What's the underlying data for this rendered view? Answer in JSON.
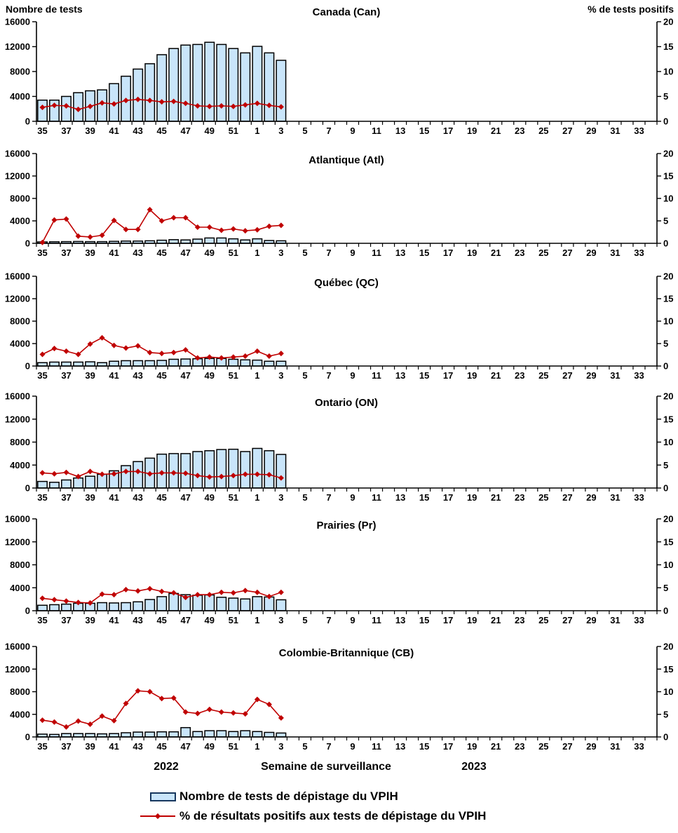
{
  "figure": {
    "left_axis_title": "Nombre de tests",
    "right_axis_title": "% de tests positifs",
    "x_axis_title": "Semaine de surveillance",
    "year_left": "2022",
    "year_right": "2023",
    "legend_bar_label": "Nombre de tests de dépistage du VPIH",
    "legend_line_label": "% de résultats positifs aux tests de dépistage du VPIH",
    "colors": {
      "bar_fill": "#C9E5FA",
      "bar_border": "#000000",
      "line": "#C00000",
      "legend_swatch_border": "#17375E",
      "axis": "#000000"
    }
  },
  "chart_data": {
    "type": "bar",
    "subtype": "combo bar + line, small multiples (6 stacked panels)",
    "x_categories": [
      "35",
      "36",
      "37",
      "38",
      "39",
      "40",
      "41",
      "42",
      "43",
      "44",
      "45",
      "46",
      "47",
      "48",
      "49",
      "50",
      "51",
      "52",
      "1",
      "2",
      "3",
      "4",
      "5",
      "6",
      "7",
      "8",
      "9",
      "10",
      "11",
      "12",
      "13",
      "14",
      "15",
      "16",
      "17",
      "18",
      "19",
      "20",
      "21",
      "22",
      "23",
      "24",
      "25",
      "26",
      "27",
      "28",
      "29",
      "30",
      "31",
      "32",
      "33",
      "34"
    ],
    "x_tick_labels": [
      "35",
      "37",
      "39",
      "41",
      "43",
      "45",
      "47",
      "49",
      "51",
      "1",
      "3",
      "5",
      "7",
      "9",
      "11",
      "13",
      "15",
      "17",
      "19",
      "21",
      "23",
      "25",
      "27",
      "29",
      "31",
      "33"
    ],
    "xlabel": "Semaine de surveillance",
    "x_year_spans": {
      "2022": "weeks 35-52",
      "2023": "weeks 1-34"
    },
    "left_axis": {
      "title": "Nombre de tests",
      "range": [
        0,
        16000
      ],
      "ticks": [
        0,
        4000,
        8000,
        12000,
        16000
      ]
    },
    "right_axis": {
      "title": "% de tests positifs",
      "range": [
        0,
        20
      ],
      "ticks": [
        0,
        5,
        10,
        15,
        20
      ]
    },
    "grid": false,
    "legend_position": "bottom-left",
    "series_meta": [
      {
        "name": "Nombre de tests de dépistage du VPIH",
        "type": "bar",
        "axis": "left"
      },
      {
        "name": "% de résultats positifs aux tests de dépistage du VPIH",
        "type": "line",
        "marker": "diamond",
        "axis": "right"
      }
    ],
    "data_weeks_note": "data plotted for weeks 35 (2022) through 3 (2023) only; remaining weeks empty",
    "panels": [
      {
        "title": "Canada (Can)",
        "tests": [
          3400,
          3400,
          4000,
          4600,
          4900,
          5050,
          6050,
          7250,
          8400,
          9250,
          10700,
          11700,
          12250,
          12350,
          12700,
          12350,
          11700,
          11000,
          12050,
          11000,
          9800
        ],
        "pct_positive": [
          2.8,
          3.2,
          3.1,
          2.4,
          3.0,
          3.7,
          3.5,
          4.2,
          4.4,
          4.2,
          3.9,
          4.0,
          3.6,
          3.1,
          3.0,
          3.1,
          3.0,
          3.3,
          3.6,
          3.2,
          2.9
        ]
      },
      {
        "title": "Atlantique (Atl)",
        "tests": [
          250,
          280,
          300,
          320,
          300,
          300,
          350,
          400,
          400,
          450,
          550,
          650,
          600,
          750,
          950,
          950,
          800,
          600,
          800,
          500,
          450
        ],
        "pct_positive": [
          0.2,
          5.2,
          5.4,
          1.6,
          1.4,
          1.8,
          5.1,
          3.1,
          3.1,
          7.5,
          5.0,
          5.7,
          5.7,
          3.6,
          3.6,
          2.9,
          3.2,
          2.8,
          3.0,
          3.8,
          4.0
        ]
      },
      {
        "title": "Québec (QC)",
        "tests": [
          600,
          700,
          700,
          700,
          750,
          600,
          850,
          950,
          950,
          950,
          1000,
          1200,
          1250,
          1300,
          1350,
          1350,
          1200,
          1100,
          1050,
          850,
          850
        ],
        "pct_positive": [
          2.6,
          3.9,
          3.3,
          2.6,
          4.9,
          6.3,
          4.6,
          4.0,
          4.5,
          3.0,
          2.8,
          3.0,
          3.6,
          1.8,
          2.0,
          1.8,
          2.0,
          2.2,
          3.3,
          2.2,
          2.8
        ]
      },
      {
        "title": "Ontario (ON)",
        "tests": [
          1150,
          1000,
          1400,
          1750,
          2050,
          2400,
          3000,
          3900,
          4600,
          5200,
          5900,
          6000,
          6000,
          6350,
          6500,
          6700,
          6750,
          6350,
          6900,
          6500,
          5850
        ],
        "pct_positive": [
          3.3,
          3.1,
          3.4,
          2.5,
          3.6,
          3.0,
          3.1,
          3.6,
          3.6,
          3.1,
          3.3,
          3.3,
          3.2,
          2.7,
          2.4,
          2.5,
          2.7,
          3.0,
          3.0,
          2.9,
          2.2
        ]
      },
      {
        "title": "Prairies (Pr)",
        "tests": [
          950,
          1050,
          1150,
          1300,
          1300,
          1400,
          1350,
          1400,
          1550,
          1950,
          2450,
          3000,
          2800,
          2700,
          2750,
          2350,
          2200,
          2050,
          2450,
          2400,
          1900
        ],
        "pct_positive": [
          2.7,
          2.4,
          2.1,
          1.8,
          1.7,
          3.6,
          3.5,
          4.6,
          4.3,
          4.8,
          4.2,
          3.9,
          2.9,
          3.5,
          3.5,
          4.0,
          3.9,
          4.4,
          4.0,
          3.1,
          4.0
        ]
      },
      {
        "title": "Colombie-Britannique (CB)",
        "tests": [
          500,
          450,
          600,
          600,
          600,
          550,
          600,
          750,
          850,
          850,
          900,
          900,
          1650,
          950,
          1100,
          1100,
          950,
          1100,
          950,
          800,
          700
        ],
        "pct_positive": [
          3.7,
          3.3,
          2.2,
          3.5,
          2.8,
          4.6,
          3.6,
          7.4,
          10.2,
          10.0,
          8.5,
          8.6,
          5.5,
          5.2,
          6.1,
          5.5,
          5.3,
          5.1,
          8.3,
          7.2,
          4.2
        ]
      }
    ]
  }
}
